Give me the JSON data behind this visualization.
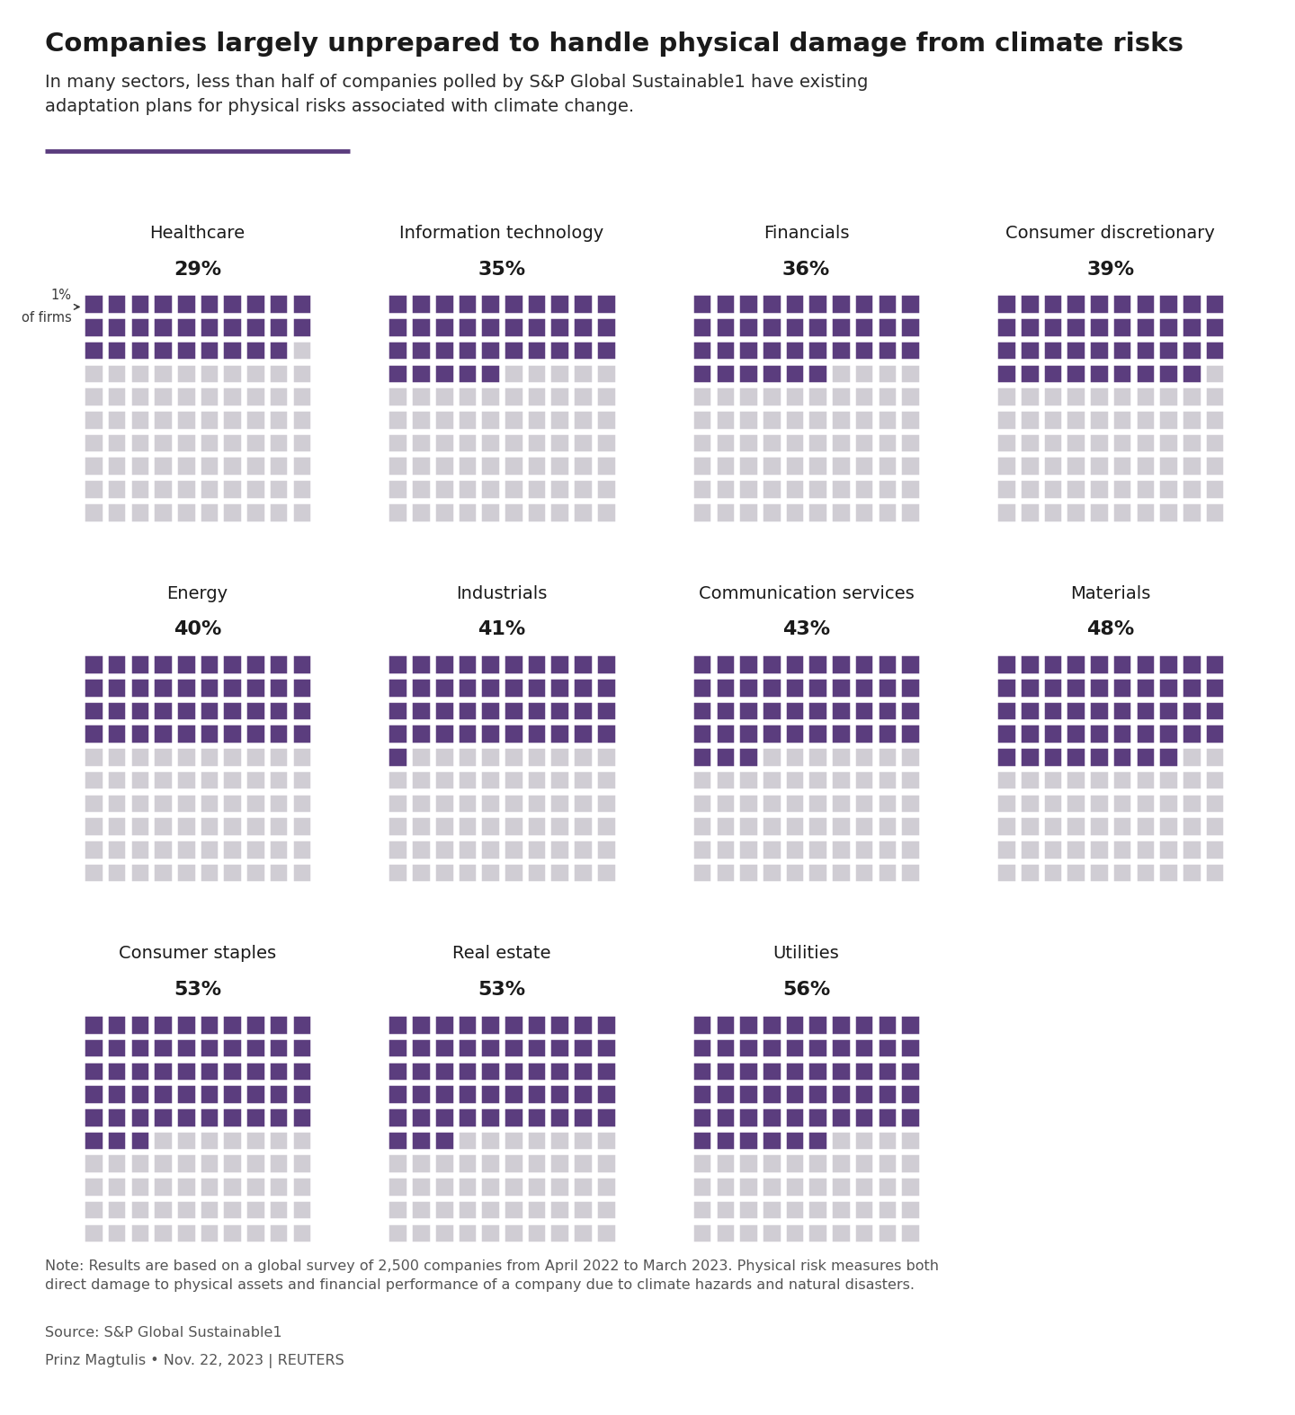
{
  "title": "Companies largely unprepared to handle physical damage from climate risks",
  "subtitle": "In many sectors, less than half of companies polled by S&P Global Sustainable1 have existing\nadaptation plans for physical risks associated with climate change.",
  "note": "Note: Results are based on a global survey of 2,500 companies from April 2022 to March 2023. Physical risk measures both\ndirect damage to physical assets and financial performance of a company due to climate hazards and natural disasters.",
  "source": "Source: S&P Global Sustainable1",
  "author": "Prinz Magtulis • Nov. 22, 2023 | REUTERS",
  "sectors": [
    {
      "name": "Healthcare",
      "pct": 29,
      "row": 0,
      "col": 0
    },
    {
      "name": "Information technology",
      "pct": 35,
      "row": 0,
      "col": 1
    },
    {
      "name": "Financials",
      "pct": 36,
      "row": 0,
      "col": 2
    },
    {
      "name": "Consumer discretionary",
      "pct": 39,
      "row": 0,
      "col": 3
    },
    {
      "name": "Energy",
      "pct": 40,
      "row": 1,
      "col": 0
    },
    {
      "name": "Industrials",
      "pct": 41,
      "row": 1,
      "col": 1
    },
    {
      "name": "Communication services",
      "pct": 43,
      "row": 1,
      "col": 2
    },
    {
      "name": "Materials",
      "pct": 48,
      "row": 1,
      "col": 3
    },
    {
      "name": "Consumer staples",
      "pct": 53,
      "row": 2,
      "col": 0
    },
    {
      "name": "Real estate",
      "pct": 53,
      "row": 2,
      "col": 1
    },
    {
      "name": "Utilities",
      "pct": 56,
      "row": 2,
      "col": 2
    }
  ],
  "filled_color": "#5b3d7e",
  "empty_color": "#d0cdd4",
  "background_color": "#ffffff",
  "title_fontsize": 21,
  "subtitle_fontsize": 14,
  "label_fontsize": 14,
  "pct_fontsize": 16,
  "note_fontsize": 11.5,
  "grid_cols": 10,
  "grid_rows": 10,
  "n_cols": 4,
  "n_rows": 3,
  "subtitle_line": "#5b3d7e"
}
